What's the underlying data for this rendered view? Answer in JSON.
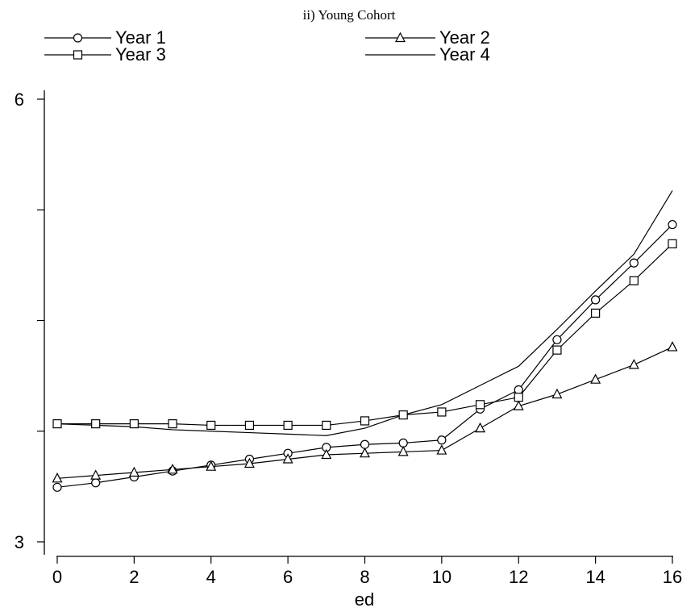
{
  "chart_data": {
    "type": "line",
    "title": "ii) Young Cohort",
    "xlabel": "ed",
    "ylabel": "",
    "xlim": [
      0,
      16
    ],
    "ylim": [
      3,
      6
    ],
    "xticks": [
      0,
      2,
      4,
      6,
      8,
      10,
      12,
      14,
      16
    ],
    "yticks": [
      3,
      6
    ],
    "y_minor_ticks": [
      3.75,
      4.5,
      5.25
    ],
    "x": [
      0,
      1,
      2,
      3,
      4,
      5,
      6,
      7,
      8,
      9,
      10,
      11,
      12,
      13,
      14,
      15,
      16
    ],
    "series": [
      {
        "name": "Year 1",
        "marker": "circle",
        "values": [
          3.37,
          3.4,
          3.44,
          3.48,
          3.52,
          3.56,
          3.6,
          3.64,
          3.66,
          3.67,
          3.69,
          3.9,
          4.03,
          4.37,
          4.64,
          4.89,
          5.15
        ]
      },
      {
        "name": "Year 2",
        "marker": "triangle",
        "values": [
          3.43,
          3.45,
          3.47,
          3.49,
          3.51,
          3.53,
          3.56,
          3.59,
          3.6,
          3.61,
          3.62,
          3.77,
          3.92,
          4.0,
          4.1,
          4.2,
          4.32
        ]
      },
      {
        "name": "Year 3",
        "marker": "square",
        "values": [
          3.8,
          3.8,
          3.8,
          3.8,
          3.79,
          3.79,
          3.79,
          3.79,
          3.82,
          3.86,
          3.88,
          3.93,
          3.98,
          4.3,
          4.55,
          4.77,
          5.02
        ]
      },
      {
        "name": "Year 4",
        "marker": "none",
        "values": [
          3.8,
          3.79,
          3.78,
          3.76,
          3.75,
          3.74,
          3.73,
          3.72,
          3.77,
          3.86,
          3.93,
          4.06,
          4.19,
          4.44,
          4.7,
          4.95,
          5.38
        ]
      }
    ]
  }
}
